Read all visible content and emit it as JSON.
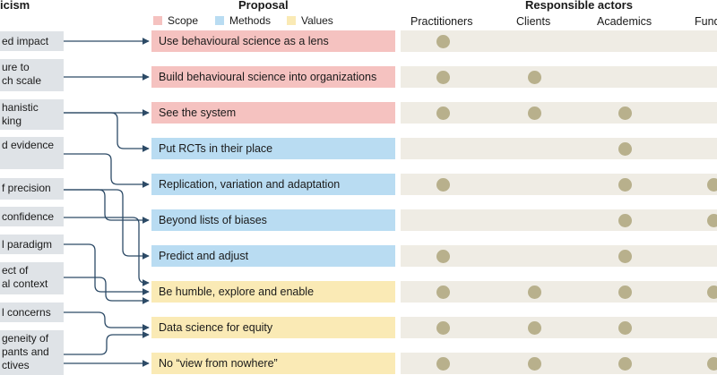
{
  "headers": {
    "criticism": "icism",
    "proposal": "Proposal",
    "actors": "Responsible actors"
  },
  "legend": [
    {
      "label": "Scope",
      "color": "#f5c2c0"
    },
    {
      "label": "Methods",
      "color": "#b9dcf2"
    },
    {
      "label": "Values",
      "color": "#faeab5"
    }
  ],
  "actors": [
    "Practitioners",
    "Clients",
    "Academics",
    "Fund"
  ],
  "criticisms": [
    {
      "lines": [
        "ed impact"
      ]
    },
    {
      "lines": [
        "ure to",
        "ch scale"
      ]
    },
    {
      "lines": [
        "hanistic",
        "king"
      ]
    },
    {
      "lines": [
        "d evidence",
        ""
      ]
    },
    {
      "lines": [
        "f precision"
      ]
    },
    {
      "lines": [
        "confidence"
      ]
    },
    {
      "lines": [
        "l paradigm"
      ]
    },
    {
      "lines": [
        "ect of",
        "al context"
      ]
    },
    {
      "lines": [
        "l concerns"
      ]
    },
    {
      "lines": [
        "geneity of",
        "pants and",
        "ctives"
      ]
    }
  ],
  "proposals": [
    {
      "label": "Use behavioural science as a lens",
      "category": "Scope",
      "actors": [
        true,
        false,
        false,
        false
      ]
    },
    {
      "label": "Build behavioural science into organizations",
      "category": "Scope",
      "actors": [
        true,
        true,
        false,
        false
      ]
    },
    {
      "label": "See the system",
      "category": "Scope",
      "actors": [
        true,
        true,
        true,
        false
      ]
    },
    {
      "label": "Put RCTs in their place",
      "category": "Methods",
      "actors": [
        false,
        false,
        true,
        false
      ]
    },
    {
      "label": "Replication, variation and adaptation",
      "category": "Methods",
      "actors": [
        true,
        false,
        true,
        true
      ]
    },
    {
      "label": "Beyond lists of biases",
      "category": "Methods",
      "actors": [
        false,
        false,
        true,
        true
      ]
    },
    {
      "label": "Predict and adjust",
      "category": "Methods",
      "actors": [
        true,
        false,
        true,
        false
      ]
    },
    {
      "label": "Be humble, explore and enable",
      "category": "Values",
      "actors": [
        true,
        true,
        true,
        true
      ]
    },
    {
      "label": "Data science for equity",
      "category": "Values",
      "actors": [
        true,
        true,
        true,
        false
      ]
    },
    {
      "label": "No “view from nowhere”",
      "category": "Values",
      "actors": [
        true,
        true,
        true,
        true
      ]
    }
  ],
  "colors": {
    "scope": "#f5c2c0",
    "methods": "#b9dcf2",
    "values": "#faeab5",
    "criticism_box": "#dfe3e7",
    "actor_bar": "#efece4",
    "dot": "#b8b08c",
    "arrow": "#2c4a66"
  }
}
